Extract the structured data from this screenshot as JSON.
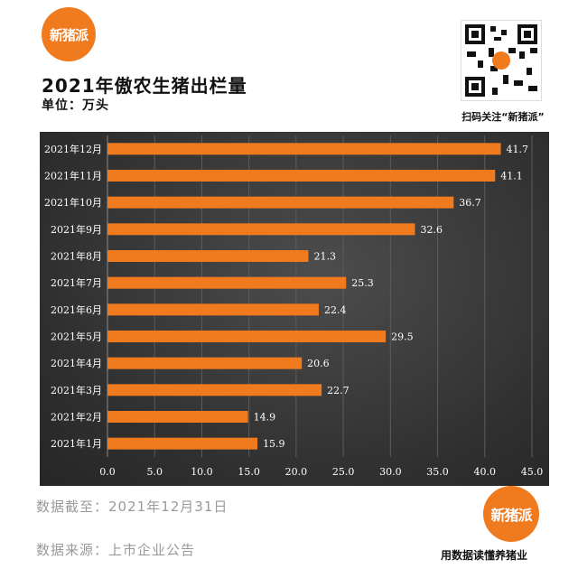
{
  "brand": {
    "logo_text": "新猪派",
    "qr_caption": "扫码关注“新猪派”",
    "slogan": "用数据读懂养猪业"
  },
  "header": {
    "title": "2021年傲农生猪出栏量",
    "unit": "单位：万头"
  },
  "footer": {
    "date_line": "数据截至：2021年12月31日",
    "source_line": "数据来源：上市企业公告"
  },
  "colors": {
    "bar": "#f07a1e",
    "panel": "#3a3a3a",
    "axis_text": "#ffffff"
  },
  "chart_data": {
    "type": "bar",
    "orientation": "horizontal",
    "categories": [
      "2021年12月",
      "2021年11月",
      "2021年10月",
      "2021年9月",
      "2021年8月",
      "2021年7月",
      "2021年6月",
      "2021年5月",
      "2021年4月",
      "2021年3月",
      "2021年2月",
      "2021年1月"
    ],
    "values": [
      41.7,
      41.1,
      36.7,
      32.6,
      21.3,
      25.3,
      22.4,
      29.5,
      20.6,
      22.7,
      14.9,
      15.9
    ],
    "value_labels": [
      "41.7",
      "41.1",
      "36.7",
      "32.6",
      "21.3",
      "25.3",
      "22.4",
      "29.5",
      "20.6",
      "22.7",
      "14.9",
      "15.9"
    ],
    "xlim": [
      0,
      45
    ],
    "xticks": [
      "0.0",
      "5.0",
      "10.0",
      "15.0",
      "20.0",
      "25.0",
      "30.0",
      "35.0",
      "40.0",
      "45.0"
    ],
    "grid": true
  }
}
